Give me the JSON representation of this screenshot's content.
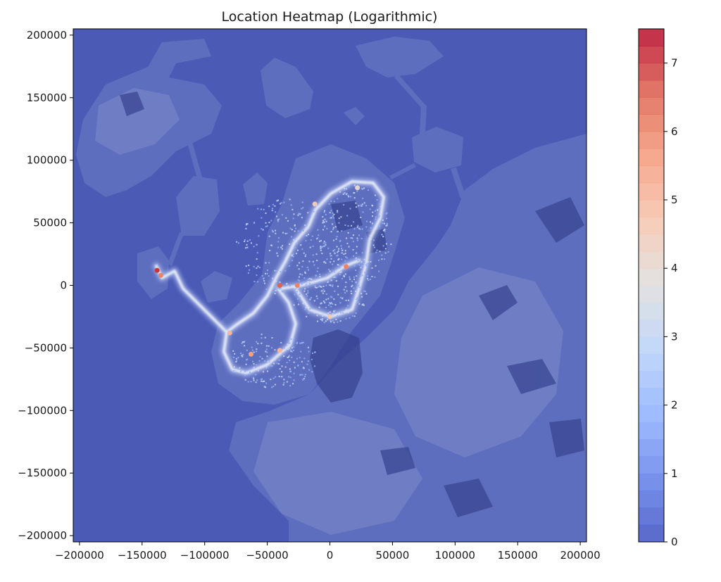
{
  "chart_data": {
    "type": "heatmap",
    "title": "Location Heatmap (Logarithmic)",
    "xlabel": "",
    "ylabel": "",
    "xlim": [
      -205000,
      205000
    ],
    "ylim": [
      -205000,
      205000
    ],
    "x_ticks": [
      -200000,
      -150000,
      -100000,
      -50000,
      0,
      50000,
      100000,
      150000,
      200000
    ],
    "x_tick_labels": [
      "−200000",
      "−150000",
      "−100000",
      "−50000",
      "0",
      "50000",
      "100000",
      "150000",
      "200000"
    ],
    "y_ticks": [
      200000,
      150000,
      100000,
      50000,
      0,
      -50000,
      -100000,
      -150000,
      -200000
    ],
    "y_tick_labels": [
      "200000",
      "150000",
      "100000",
      "50000",
      "0",
      "−50000",
      "−100000",
      "−150000",
      "−200000"
    ],
    "colorbar": {
      "colormap": "coolwarm",
      "range": [
        0,
        7.5
      ],
      "levels": 30,
      "ticks": [
        0,
        1,
        2,
        3,
        4,
        5,
        6,
        7
      ],
      "tick_labels": [
        "0",
        "1",
        "2",
        "3",
        "4",
        "5",
        "6",
        "7"
      ]
    },
    "background_map_color": "#4a5ab5",
    "hot_spots": [
      {
        "x": -138000,
        "y": 12000,
        "value": 7
      },
      {
        "x": -135000,
        "y": 8000,
        "value": 6
      },
      {
        "x": -40000,
        "y": 0,
        "value": 6.5
      },
      {
        "x": -26000,
        "y": 0,
        "value": 6
      },
      {
        "x": 13000,
        "y": 15000,
        "value": 6
      },
      {
        "x": -80000,
        "y": -38000,
        "value": 5
      },
      {
        "x": -63000,
        "y": -55000,
        "value": 5.5
      },
      {
        "x": -40000,
        "y": -52000,
        "value": 5
      },
      {
        "x": 0,
        "y": -25000,
        "value": 4.5
      },
      {
        "x": -12000,
        "y": 65000,
        "value": 4.5
      },
      {
        "x": 22000,
        "y": 78000,
        "value": 4
      }
    ]
  }
}
